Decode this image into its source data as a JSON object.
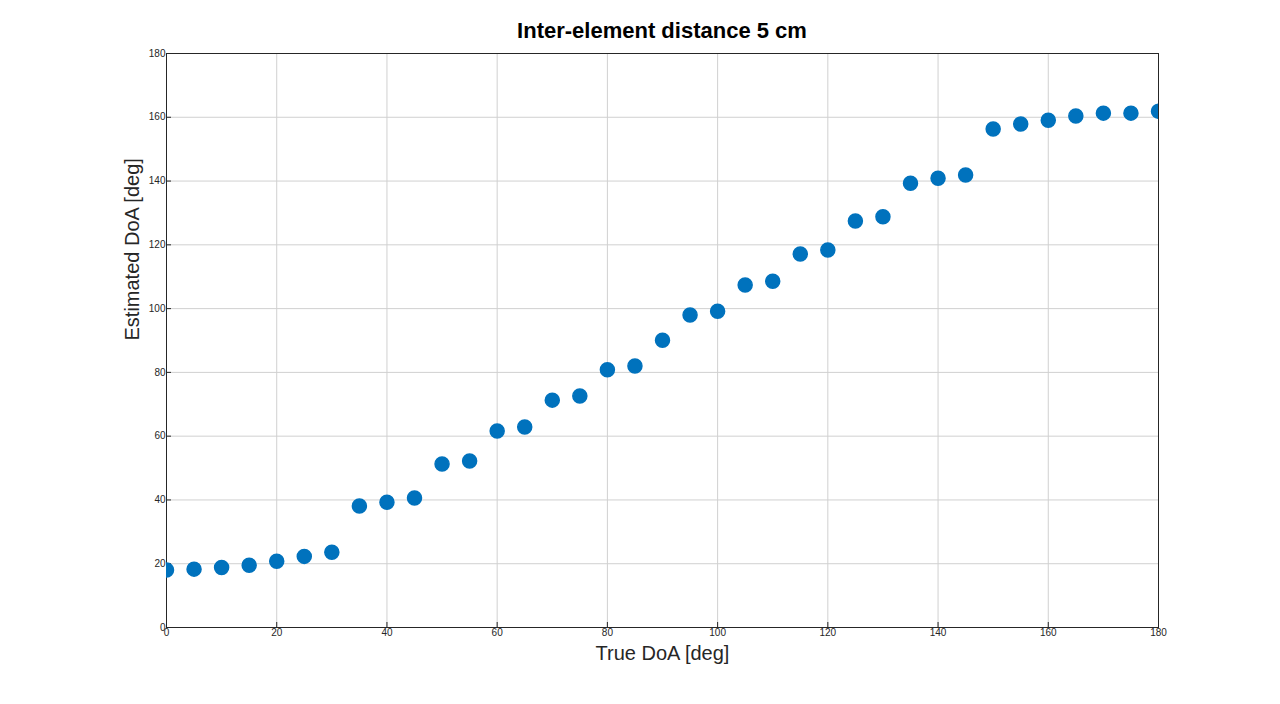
{
  "chart_data": {
    "type": "scatter",
    "title": "Inter-element distance 5 cm",
    "x_label": "True DoA [deg]",
    "y_label": "Estimated DoA [deg]",
    "x": [
      0,
      5,
      10,
      15,
      20,
      25,
      30,
      35,
      40,
      45,
      50,
      55,
      60,
      65,
      70,
      75,
      80,
      85,
      90,
      95,
      100,
      105,
      110,
      115,
      120,
      125,
      130,
      135,
      140,
      145,
      150,
      155,
      160,
      165,
      170,
      175,
      180
    ],
    "values": [
      18,
      18.3,
      18.8,
      19.5,
      20.8,
      22.3,
      23.6,
      38.1,
      39.3,
      40.6,
      51.3,
      52.2,
      61.6,
      62.9,
      71.3,
      72.6,
      80.8,
      82,
      90.1,
      98,
      99.2,
      107.4,
      108.6,
      117.1,
      118.4,
      127.5,
      128.8,
      139.3,
      140.9,
      141.9,
      156.3,
      157.9,
      159.1,
      160.4,
      161.3,
      161.3,
      161.9
    ],
    "color": "#0072bd",
    "marker": "circle",
    "xlim": [
      0,
      180
    ],
    "xticks": [
      0,
      20,
      40,
      60,
      80,
      100,
      120,
      140,
      160,
      180
    ],
    "ylim": [
      0,
      180
    ],
    "yticks": [
      0,
      20,
      40,
      60,
      80,
      100,
      120,
      140,
      160,
      180
    ],
    "grid": true
  }
}
